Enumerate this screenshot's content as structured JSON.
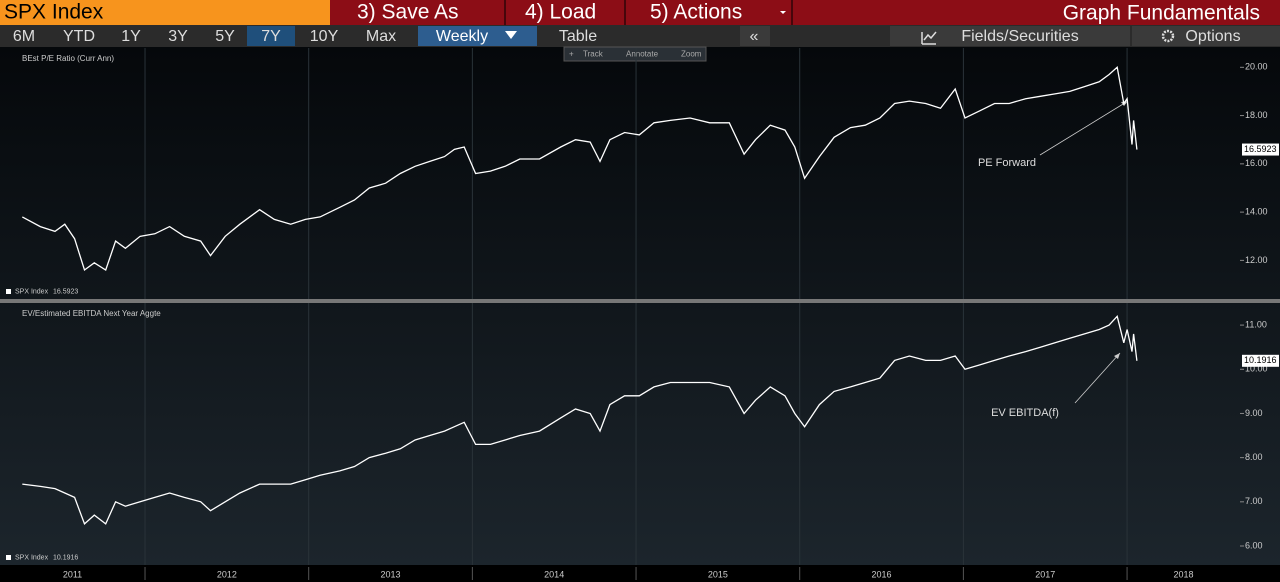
{
  "toolbar": {
    "title": "SPX Index",
    "menus": [
      "3) Save As",
      "4) Load",
      "5) Actions"
    ],
    "right_title": "Graph Fundamentals",
    "ranges": [
      "6M",
      "YTD",
      "1Y",
      "3Y",
      "5Y",
      "7Y",
      "10Y",
      "Max"
    ],
    "selected_range": "7Y",
    "frequency": "Weekly",
    "table": "Table",
    "collapse": "«",
    "fields": "Fields/Securities",
    "options": "Options",
    "tools": [
      "Track",
      "Annotate",
      "Zoom"
    ]
  },
  "chart_data": [
    {
      "type": "line",
      "title": "BEst P/E Ratio (Curr Ann)",
      "annotation": "PE Forward",
      "x": [
        2011.25,
        2011.36,
        2011.45,
        2011.51,
        2011.57,
        2011.63,
        2011.69,
        2011.76,
        2011.82,
        2011.88,
        2011.97,
        2012.06,
        2012.15,
        2012.24,
        2012.34,
        2012.4,
        2012.49,
        2012.58,
        2012.7,
        2012.79,
        2012.89,
        2012.98,
        2013.07,
        2013.19,
        2013.28,
        2013.37,
        2013.47,
        2013.56,
        2013.65,
        2013.74,
        2013.83,
        2013.89,
        2013.95,
        2014.02,
        2014.11,
        2014.2,
        2014.29,
        2014.41,
        2014.54,
        2014.63,
        2014.72,
        2014.78,
        2014.84,
        2014.93,
        2015.02,
        2015.11,
        2015.21,
        2015.33,
        2015.45,
        2015.57,
        2015.66,
        2015.73,
        2015.82,
        2015.91,
        2015.97,
        2016.03,
        2016.12,
        2016.21,
        2016.31,
        2016.4,
        2016.49,
        2016.58,
        2016.67,
        2016.77,
        2016.86,
        2016.95,
        2017.01,
        2017.1,
        2017.19,
        2017.28,
        2017.38,
        2017.47,
        2017.56,
        2017.65,
        2017.74,
        2017.83,
        2017.89,
        2017.94,
        2017.98,
        2018.0,
        2018.03,
        2018.04,
        2018.06
      ],
      "series": [
        {
          "name": "SPX Index",
          "color": "#ffffff",
          "values": [
            13.8,
            13.4,
            13.2,
            13.5,
            12.9,
            11.6,
            11.9,
            11.6,
            12.8,
            12.5,
            13.0,
            13.1,
            13.4,
            13.0,
            12.8,
            12.2,
            13.0,
            13.5,
            14.1,
            13.7,
            13.5,
            13.7,
            13.8,
            14.2,
            14.5,
            15.0,
            15.2,
            15.6,
            15.9,
            16.1,
            16.3,
            16.6,
            16.7,
            15.6,
            15.7,
            15.9,
            16.2,
            16.2,
            16.7,
            17.0,
            16.9,
            16.1,
            17.0,
            17.3,
            17.2,
            17.7,
            17.8,
            17.9,
            17.7,
            17.7,
            16.4,
            17.0,
            17.6,
            17.4,
            16.7,
            15.4,
            16.3,
            17.1,
            17.5,
            17.6,
            17.9,
            18.5,
            18.6,
            18.5,
            18.3,
            19.1,
            17.9,
            18.2,
            18.5,
            18.5,
            18.7,
            18.8,
            18.9,
            19.0,
            19.2,
            19.4,
            19.7,
            20.0,
            18.5,
            18.7,
            16.8,
            17.8,
            16.5923
          ]
        }
      ],
      "xlim": [
        2011.114,
        2018.69
      ],
      "xticks": [
        2012,
        2013,
        2014,
        2015,
        2016,
        2017,
        2018
      ],
      "ylim": [
        10.4,
        20.8
      ],
      "yticks": [
        {
          "value": 12,
          "label": "12.00"
        },
        {
          "value": 14,
          "label": "14.00"
        },
        {
          "value": 16,
          "label": "16.00"
        },
        {
          "value": 18,
          "label": "18.00"
        },
        {
          "value": 20,
          "label": "20.00"
        }
      ]
    },
    {
      "type": "line",
      "title": "EV/Estimated EBITDA Next Year Aggte",
      "annotation": "EV EBITDA(f)",
      "x": [
        2011.25,
        2011.36,
        2011.45,
        2011.51,
        2011.57,
        2011.63,
        2011.69,
        2011.76,
        2011.82,
        2011.88,
        2011.97,
        2012.06,
        2012.15,
        2012.24,
        2012.34,
        2012.4,
        2012.49,
        2012.58,
        2012.7,
        2012.79,
        2012.89,
        2012.98,
        2013.07,
        2013.19,
        2013.28,
        2013.37,
        2013.47,
        2013.56,
        2013.65,
        2013.74,
        2013.83,
        2013.89,
        2013.95,
        2014.02,
        2014.11,
        2014.2,
        2014.29,
        2014.41,
        2014.54,
        2014.63,
        2014.72,
        2014.78,
        2014.84,
        2014.93,
        2015.02,
        2015.11,
        2015.21,
        2015.33,
        2015.45,
        2015.57,
        2015.66,
        2015.73,
        2015.82,
        2015.91,
        2015.97,
        2016.03,
        2016.12,
        2016.21,
        2016.31,
        2016.4,
        2016.49,
        2016.58,
        2016.67,
        2016.77,
        2016.86,
        2016.95,
        2017.01,
        2017.1,
        2017.19,
        2017.28,
        2017.38,
        2017.47,
        2017.56,
        2017.65,
        2017.74,
        2017.83,
        2017.89,
        2017.94,
        2017.98,
        2018.0,
        2018.03,
        2018.04,
        2018.06
      ],
      "series": [
        {
          "name": "SPX Index",
          "color": "#ffffff",
          "values": [
            7.4,
            7.35,
            7.3,
            7.2,
            7.1,
            6.5,
            6.7,
            6.5,
            7.0,
            6.9,
            7.0,
            7.1,
            7.2,
            7.1,
            7.0,
            6.8,
            7.0,
            7.2,
            7.4,
            7.4,
            7.4,
            7.5,
            7.6,
            7.7,
            7.8,
            8.0,
            8.1,
            8.2,
            8.4,
            8.5,
            8.6,
            8.7,
            8.8,
            8.3,
            8.3,
            8.4,
            8.5,
            8.6,
            8.9,
            9.1,
            9.0,
            8.6,
            9.2,
            9.4,
            9.4,
            9.6,
            9.7,
            9.7,
            9.7,
            9.6,
            9.0,
            9.3,
            9.6,
            9.4,
            9.0,
            8.7,
            9.2,
            9.5,
            9.6,
            9.7,
            9.8,
            10.2,
            10.3,
            10.2,
            10.2,
            10.3,
            10.0,
            10.1,
            10.2,
            10.3,
            10.4,
            10.5,
            10.6,
            10.7,
            10.8,
            10.9,
            11.0,
            11.2,
            10.6,
            10.9,
            10.4,
            10.8,
            10.1916
          ]
        }
      ],
      "xlim": [
        2011.114,
        2018.69
      ],
      "xticks": [
        2012,
        2013,
        2014,
        2015,
        2016,
        2017,
        2018
      ],
      "x_labels": [
        "2011",
        "2012",
        "2013",
        "2014",
        "2015",
        "2016",
        "2017",
        "2018"
      ],
      "ylim": [
        5.57,
        11.5
      ],
      "yticks": [
        {
          "value": 6,
          "label": "6.00"
        },
        {
          "value": 7,
          "label": "7.00"
        },
        {
          "value": 8,
          "label": "8.00"
        },
        {
          "value": 9,
          "label": "9.00"
        },
        {
          "value": 10,
          "label": "10.00"
        },
        {
          "value": 11,
          "label": "11.00"
        }
      ]
    }
  ]
}
